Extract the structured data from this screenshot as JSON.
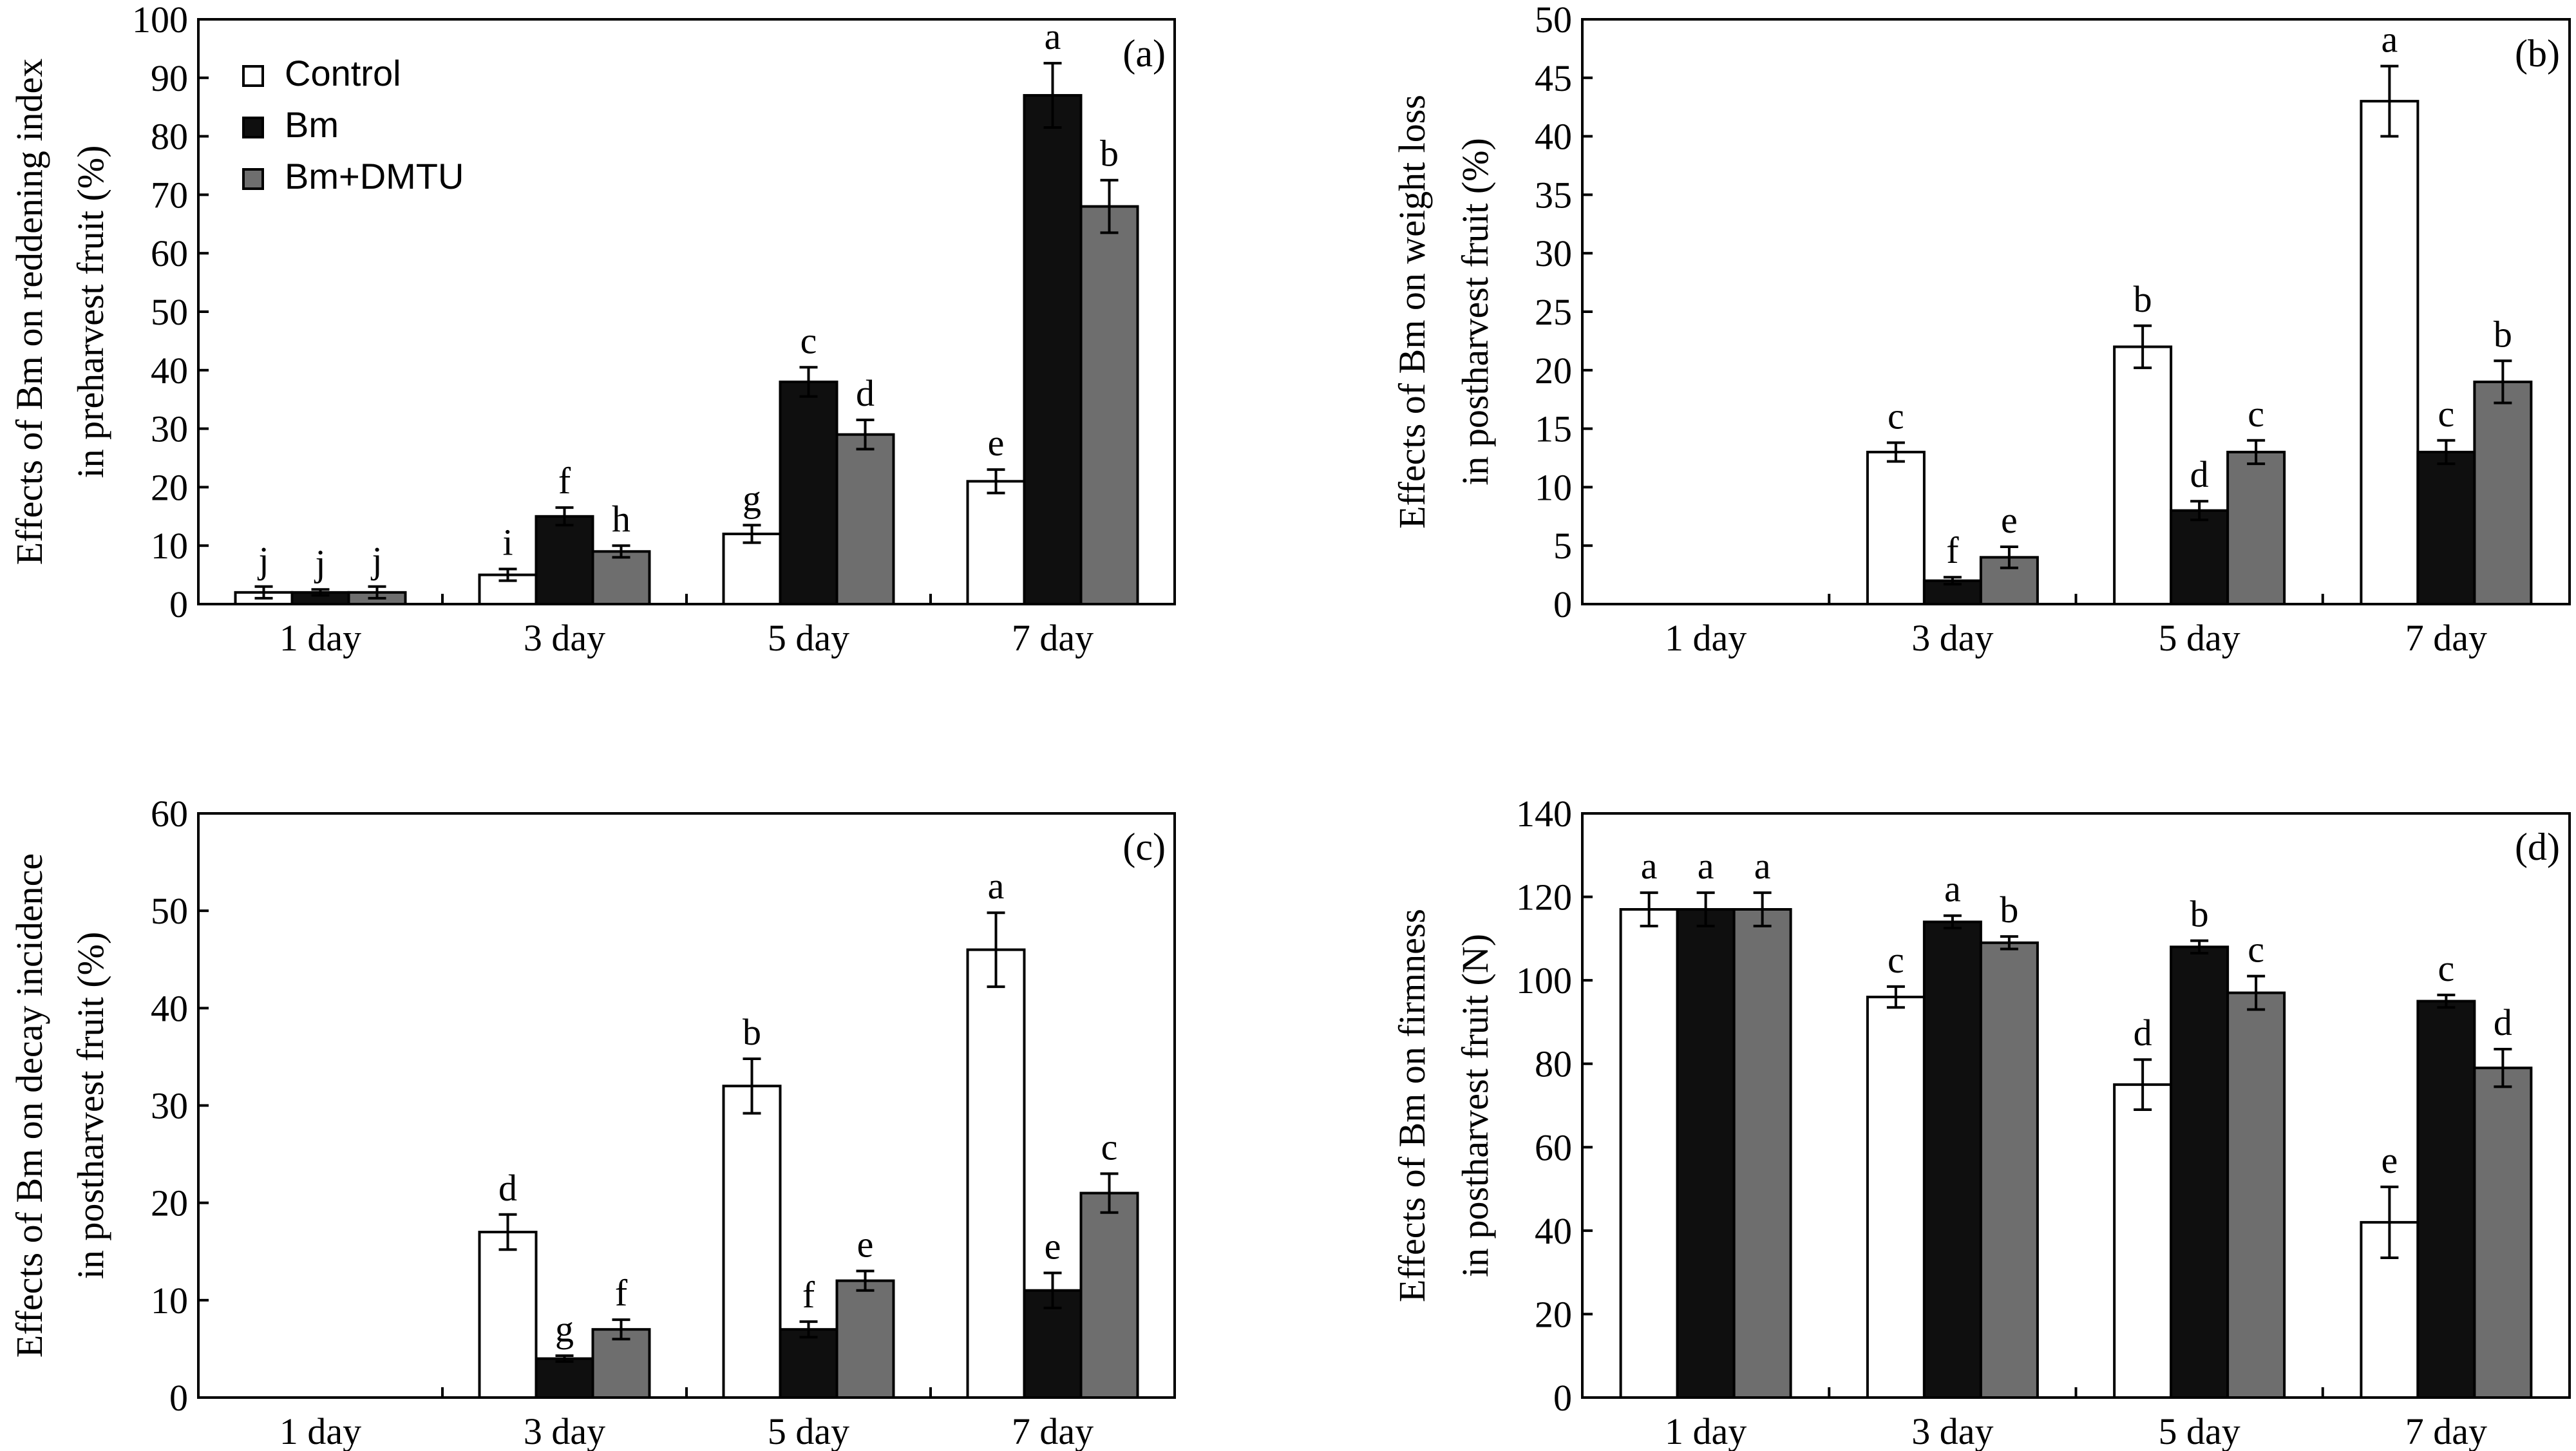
{
  "figure": {
    "legend": [
      {
        "name": "Control",
        "color": "#ffffff"
      },
      {
        "name": "Bm",
        "color": "#0f0f0f"
      },
      {
        "name": "Bm+DMTU",
        "color": "#6e6e6e"
      }
    ]
  },
  "chart_data": [
    {
      "type": "bar",
      "panel": "(a)",
      "ylabel": [
        "Effects of Bm on reddening index",
        "in preharvest fruit (%)"
      ],
      "ylim": [
        0,
        100
      ],
      "yticks": [
        0,
        10,
        20,
        30,
        40,
        50,
        60,
        70,
        80,
        90,
        100
      ],
      "categories": [
        "1 day",
        "3 day",
        "5 day",
        "7 day"
      ],
      "series": [
        {
          "name": "Control",
          "values": [
            2,
            5,
            12,
            21
          ],
          "errors": [
            1,
            1,
            1.5,
            2
          ],
          "letters": [
            "j",
            "i",
            "g",
            "e"
          ]
        },
        {
          "name": "Bm",
          "values": [
            2,
            15,
            38,
            87
          ],
          "errors": [
            0.5,
            1.5,
            2.5,
            5.5
          ],
          "letters": [
            "j",
            "f",
            "c",
            "a"
          ]
        },
        {
          "name": "Bm+DMTU",
          "values": [
            2,
            9,
            29,
            68
          ],
          "errors": [
            1,
            1,
            2.5,
            4.5
          ],
          "letters": [
            "j",
            "h",
            "d",
            "b"
          ]
        }
      ]
    },
    {
      "type": "bar",
      "panel": "(b)",
      "ylabel": [
        "Effects of Bm on weight loss",
        "in postharvest fruit (%)"
      ],
      "ylim": [
        0,
        50
      ],
      "yticks": [
        0,
        5,
        10,
        15,
        20,
        25,
        30,
        35,
        40,
        45,
        50
      ],
      "categories": [
        "1 day",
        "3 day",
        "5 day",
        "7 day"
      ],
      "series": [
        {
          "name": "Control",
          "values": [
            0,
            13,
            22,
            43
          ],
          "errors": [
            0,
            0.8,
            1.8,
            3
          ],
          "letters": [
            "",
            "c",
            "b",
            "a"
          ]
        },
        {
          "name": "Bm",
          "values": [
            0,
            2,
            8,
            13
          ],
          "errors": [
            0,
            0.3,
            0.8,
            1
          ],
          "letters": [
            "",
            "f",
            "d",
            "c"
          ]
        },
        {
          "name": "Bm+DMTU",
          "values": [
            0,
            4,
            13,
            19
          ],
          "errors": [
            0,
            0.9,
            1,
            1.8
          ],
          "letters": [
            "",
            "e",
            "c",
            "b"
          ]
        }
      ]
    },
    {
      "type": "bar",
      "panel": "(c)",
      "ylabel": [
        "Effects of Bm on decay incidence",
        "in postharvest fruit (%)"
      ],
      "ylim": [
        0,
        60
      ],
      "yticks": [
        0,
        10,
        20,
        30,
        40,
        50,
        60
      ],
      "categories": [
        "1 day",
        "3 day",
        "5 day",
        "7 day"
      ],
      "series": [
        {
          "name": "Control",
          "values": [
            0,
            17,
            32,
            46
          ],
          "errors": [
            0,
            1.8,
            2.8,
            3.8
          ],
          "letters": [
            "",
            "d",
            "b",
            "a"
          ]
        },
        {
          "name": "Bm",
          "values": [
            0,
            4,
            7,
            11
          ],
          "errors": [
            0,
            0.3,
            0.8,
            1.8
          ],
          "letters": [
            "",
            "g",
            "f",
            "e"
          ]
        },
        {
          "name": "Bm+DMTU",
          "values": [
            0,
            7,
            12,
            21
          ],
          "errors": [
            0,
            1,
            1,
            2
          ],
          "letters": [
            "",
            "f",
            "e",
            "c"
          ]
        }
      ]
    },
    {
      "type": "bar",
      "panel": "(d)",
      "ylabel": [
        "Effects of Bm on firmness",
        "in postharvest fruit (N)"
      ],
      "ylim": [
        0,
        140
      ],
      "yticks": [
        0,
        20,
        40,
        60,
        80,
        100,
        120,
        140
      ],
      "categories": [
        "1 day",
        "3 day",
        "5 day",
        "7 day"
      ],
      "series": [
        {
          "name": "Control",
          "values": [
            117,
            96,
            75,
            42
          ],
          "errors": [
            4,
            2.5,
            6,
            8.5
          ],
          "letters": [
            "a",
            "c",
            "d",
            "e"
          ]
        },
        {
          "name": "Bm",
          "values": [
            117,
            114,
            108,
            95
          ],
          "errors": [
            4,
            1.5,
            1.5,
            1.5
          ],
          "letters": [
            "a",
            "a",
            "b",
            "c"
          ]
        },
        {
          "name": "Bm+DMTU",
          "values": [
            117,
            109,
            97,
            79
          ],
          "errors": [
            4,
            1.5,
            4,
            4.5
          ],
          "letters": [
            "a",
            "b",
            "c",
            "d"
          ]
        }
      ]
    }
  ]
}
